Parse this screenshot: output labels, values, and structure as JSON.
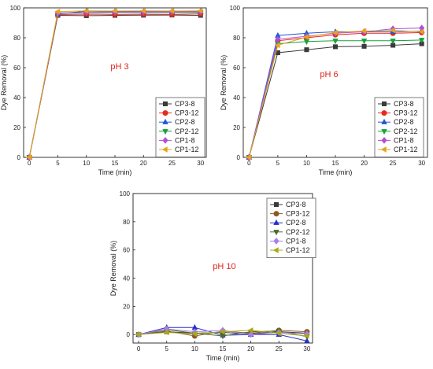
{
  "chart_data": [
    {
      "type": "line",
      "annotation": "pH 3",
      "annotation_color": "#e2231a",
      "xlabel": "Time (min)",
      "ylabel": "Dye Removal (%)",
      "xlim": [
        -1,
        31
      ],
      "ylim": [
        0,
        100
      ],
      "xticks": [
        0,
        5,
        10,
        15,
        20,
        25,
        30
      ],
      "yticks": [
        0,
        20,
        40,
        60,
        80,
        100
      ],
      "legend_position": "lower-right",
      "x": [
        0,
        5,
        10,
        15,
        20,
        25,
        30
      ],
      "series": [
        {
          "name": "CP3-8",
          "values": [
            0,
            95.0,
            94.8,
            95.0,
            95.1,
            95.2,
            95.0
          ]
        },
        {
          "name": "CP3-12",
          "values": [
            0,
            95.5,
            95.8,
            95.6,
            95.8,
            95.6,
            96.0
          ]
        },
        {
          "name": "CP2-8",
          "values": [
            0,
            96.0,
            97.8,
            97.6,
            97.5,
            97.5,
            97.6
          ]
        },
        {
          "name": "CP2-12",
          "values": [
            0,
            96.3,
            96.8,
            96.9,
            97.0,
            96.9,
            97.0
          ]
        },
        {
          "name": "CP1-8",
          "values": [
            0,
            96.6,
            97.0,
            97.2,
            97.2,
            97.3,
            97.4
          ]
        },
        {
          "name": "CP1-12",
          "values": [
            0,
            97.5,
            98.0,
            97.9,
            98.0,
            97.9,
            98.0
          ]
        }
      ]
    },
    {
      "type": "line",
      "annotation": "pH 6",
      "annotation_color": "#e2231a",
      "xlabel": "Time (min)",
      "ylabel": "Dye Removal (%)",
      "xlim": [
        -1,
        31
      ],
      "ylim": [
        0,
        100
      ],
      "xticks": [
        0,
        5,
        10,
        15,
        20,
        25,
        30
      ],
      "yticks": [
        0,
        20,
        40,
        60,
        80,
        100
      ],
      "legend_position": "lower-right",
      "x": [
        0,
        5,
        10,
        15,
        20,
        25,
        30
      ],
      "series": [
        {
          "name": "CP3-8",
          "values": [
            0,
            70.0,
            72.0,
            74.0,
            74.3,
            75.0,
            76.0
          ]
        },
        {
          "name": "CP3-12",
          "values": [
            0,
            78.0,
            80.0,
            82.0,
            83.0,
            83.0,
            83.5
          ]
        },
        {
          "name": "CP2-8",
          "values": [
            0,
            81.5,
            83.0,
            84.0,
            84.0,
            84.0,
            84.5
          ]
        },
        {
          "name": "CP2-12",
          "values": [
            0,
            76.0,
            77.5,
            78.0,
            78.0,
            78.0,
            78.5
          ]
        },
        {
          "name": "CP1-8",
          "values": [
            0,
            79.0,
            81.0,
            83.0,
            84.0,
            86.0,
            86.5
          ]
        },
        {
          "name": "CP1-12",
          "values": [
            0,
            75.0,
            80.5,
            83.5,
            84.5,
            85.0,
            84.0
          ]
        }
      ]
    },
    {
      "type": "line",
      "annotation": "pH 10",
      "annotation_color": "#e2231a",
      "xlabel": "Time (min)",
      "ylabel": "Dye Removal (%)",
      "xlim": [
        -1,
        31
      ],
      "ylim": [
        -6,
        100
      ],
      "xticks": [
        0,
        5,
        10,
        15,
        20,
        25,
        30
      ],
      "yticks": [
        0,
        20,
        40,
        60,
        80,
        100
      ],
      "legend_position": "upper-right",
      "x": [
        0,
        5,
        10,
        15,
        20,
        25,
        30
      ],
      "series": [
        {
          "name": "CP3-8",
          "values": [
            0,
            2.0,
            1.0,
            1.5,
            0.5,
            2.0,
            1.0
          ]
        },
        {
          "name": "CP3-12",
          "values": [
            0,
            2.5,
            -1.0,
            2.5,
            1.0,
            3.0,
            2.0
          ]
        },
        {
          "name": "CP2-8",
          "values": [
            0,
            5.0,
            5.0,
            -0.5,
            0.0,
            0.0,
            -4.5
          ]
        },
        {
          "name": "CP2-12",
          "values": [
            0,
            3.5,
            1.0,
            -1.0,
            2.0,
            2.5,
            -1.5
          ]
        },
        {
          "name": "CP1-8",
          "values": [
            0,
            4.0,
            2.0,
            3.0,
            0.0,
            1.5,
            0.5
          ]
        },
        {
          "name": "CP1-12",
          "values": [
            0,
            1.5,
            0.5,
            2.0,
            3.0,
            1.0,
            -1.0
          ]
        }
      ]
    }
  ],
  "series_styles": [
    {
      "color": "#3a3a3a",
      "marker": "square"
    },
    {
      "color": "#e8291c",
      "marker": "circle"
    },
    {
      "color": "#1f57d6",
      "marker": "triangle-up"
    },
    {
      "color": "#14a33c",
      "marker": "triangle-down"
    },
    {
      "color": "#b34fd8",
      "marker": "diamond"
    },
    {
      "color": "#e8a317",
      "marker": "triangle-left"
    }
  ],
  "series_styles_ph10": [
    {
      "color": "#3a3a3a",
      "marker": "square"
    },
    {
      "color": "#8b5a2b",
      "marker": "circle"
    },
    {
      "color": "#2531c9",
      "marker": "triangle-up"
    },
    {
      "color": "#4d6b2a",
      "marker": "triangle-down"
    },
    {
      "color": "#a77fe6",
      "marker": "diamond"
    },
    {
      "color": "#a8a81a",
      "marker": "triangle-left"
    }
  ]
}
